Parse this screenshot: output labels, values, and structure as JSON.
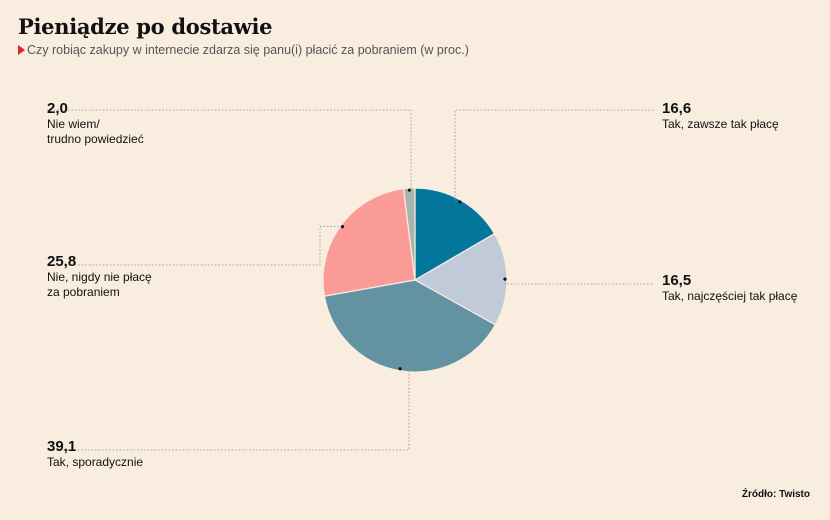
{
  "title": "Pieniądze po dostawie",
  "subtitle": "Czy robiąc zakupy w internecie zdarza się panu(i) płacić za pobraniem (w proc.)",
  "source": "Źródło: Twisto",
  "chart_data": {
    "type": "pie",
    "slices": [
      {
        "label": "Tak, zawsze tak płacę",
        "value": 16.6,
        "value_text": "16,6",
        "color": "#03769c"
      },
      {
        "label": "Tak, najczęściej tak płacę",
        "value": 16.5,
        "value_text": "16,5",
        "color": "#c1cad8"
      },
      {
        "label": "Tak, sporadycznie",
        "value": 39.1,
        "value_text": "39,1",
        "color": "#6393a3"
      },
      {
        "label": "Nie, nigdy nie płacę\nza pobraniem",
        "value": 25.8,
        "value_text": "25,8",
        "color": "#fb9b98"
      },
      {
        "label": "Nie wiem/\ntrudno powiedzieć",
        "value": 2.0,
        "value_text": "2,0",
        "color": "#a9b3af"
      }
    ]
  }
}
